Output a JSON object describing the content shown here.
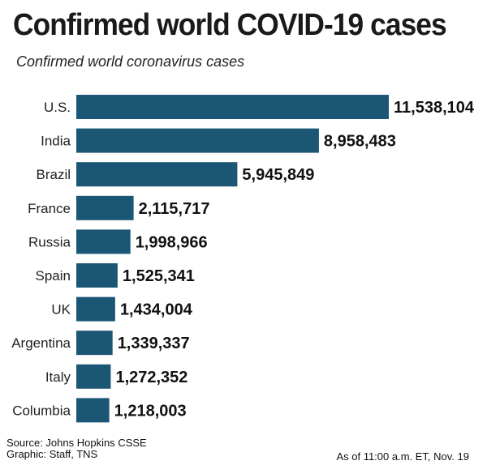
{
  "header": {
    "title": "Confirmed world COVID-19 cases",
    "subtitle": "Confirmed world coronavirus cases"
  },
  "footer": {
    "source": "Source: Johns Hopkins CSSE",
    "graphic": "Graphic: Staff, TNS",
    "as_of": "As of 11:00 a.m. ET, Nov. 19"
  },
  "colors": {
    "bar": "#1b5674"
  },
  "chart_data": {
    "type": "bar",
    "orientation": "horizontal",
    "title": "Confirmed world COVID-19 cases",
    "subtitle": "Confirmed world coronavirus cases",
    "categories": [
      "U.S.",
      "India",
      "Brazil",
      "France",
      "Russia",
      "Spain",
      "UK",
      "Argentina",
      "Italy",
      "Columbia"
    ],
    "values": [
      11538104,
      8958483,
      5945849,
      2115717,
      1998966,
      1525341,
      1434004,
      1339337,
      1272352,
      1218003
    ],
    "value_labels": [
      "11,538,104",
      "8,958,483",
      "5,945,849",
      "2,115,717",
      "1,998,966",
      "1,525,341",
      "1,434,004",
      "1,339,337",
      "1,272,352",
      "1,218,003"
    ],
    "xlabel": "",
    "ylabel": "",
    "grid": false,
    "legend": "none"
  }
}
